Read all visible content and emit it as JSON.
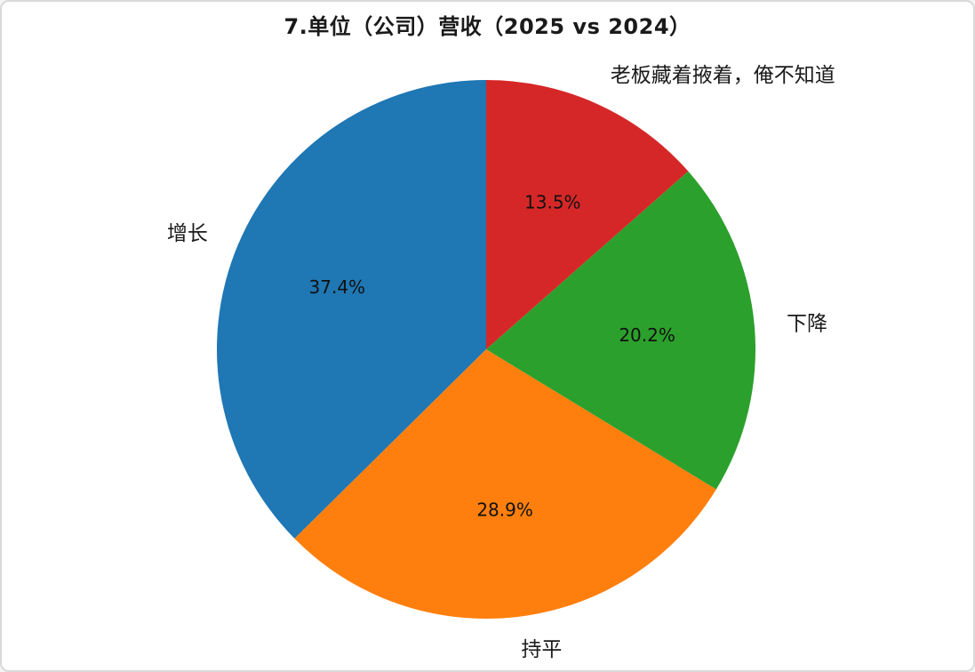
{
  "page": {
    "background_color": "#ffffff",
    "border_color": "#d9d9d9",
    "text_color": "#1a1a1a"
  },
  "chart_data": {
    "type": "pie",
    "title": "7.单位（公司）营收（2025 vs 2024）",
    "slices": [
      {
        "label": "增长",
        "value": 37.4,
        "pct_label": "37.4%",
        "color": "#1f77b4"
      },
      {
        "label": "持平",
        "value": 28.9,
        "pct_label": "28.9%",
        "color": "#ff7f0e"
      },
      {
        "label": "下降",
        "value": 20.2,
        "pct_label": "20.2%",
        "color": "#2ca02c"
      },
      {
        "label": "老板藏着掖着，俺不知道",
        "value": 13.5,
        "pct_label": "13.5%",
        "color": "#d62728"
      }
    ],
    "start_angle_deg": 90,
    "counterclockwise": true,
    "pct_distance": 0.6,
    "label_distance": 1.12,
    "legend_position": "none",
    "grid": false
  }
}
